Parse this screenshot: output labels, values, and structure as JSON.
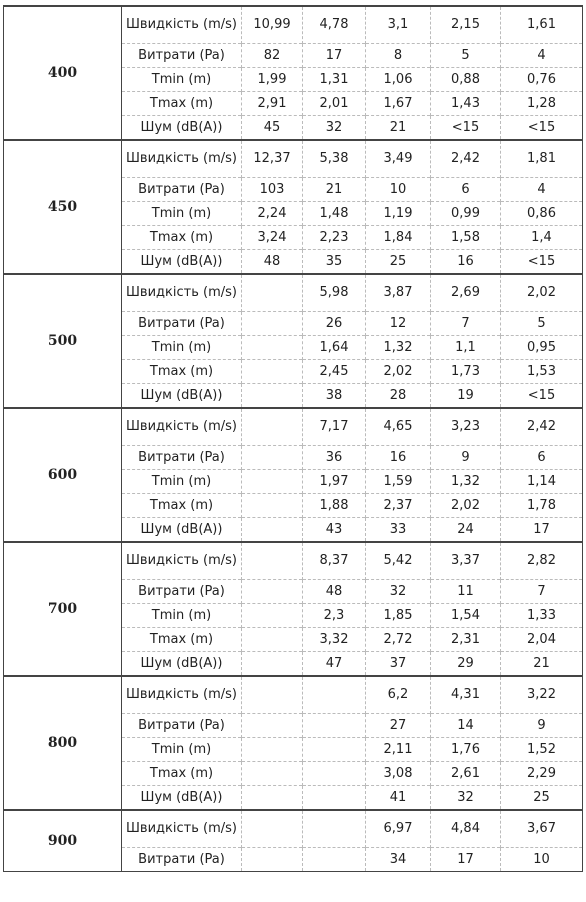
{
  "table": {
    "groups": [
      {
        "label": "400",
        "rows": [
          {
            "label": "Швидкість (m/s)",
            "values": [
              "10,99",
              "4,78",
              "3,1",
              "2,15",
              "1,61"
            ]
          },
          {
            "label": "Витрати (Pa)",
            "values": [
              "82",
              "17",
              "8",
              "5",
              "4"
            ]
          },
          {
            "label": "Tmin (m)",
            "values": [
              "1,99",
              "1,31",
              "1,06",
              "0,88",
              "0,76"
            ]
          },
          {
            "label": "Tmax (m)",
            "values": [
              "2,91",
              "2,01",
              "1,67",
              "1,43",
              "1,28"
            ]
          },
          {
            "label": "Шум (dB(A))",
            "values": [
              "45",
              "32",
              "21",
              "<15",
              "<15"
            ]
          }
        ]
      },
      {
        "label": "450",
        "rows": [
          {
            "label": "Швидкість (m/s)",
            "values": [
              "12,37",
              "5,38",
              "3,49",
              "2,42",
              "1,81"
            ]
          },
          {
            "label": "Витрати (Pa)",
            "values": [
              "103",
              "21",
              "10",
              "6",
              "4"
            ]
          },
          {
            "label": "Tmin (m)",
            "values": [
              "2,24",
              "1,48",
              "1,19",
              "0,99",
              "0,86"
            ]
          },
          {
            "label": "Tmax (m)",
            "values": [
              "3,24",
              "2,23",
              "1,84",
              "1,58",
              "1,4"
            ]
          },
          {
            "label": "Шум (dB(A))",
            "values": [
              "48",
              "35",
              "25",
              "16",
              "<15"
            ]
          }
        ]
      },
      {
        "label": "500",
        "rows": [
          {
            "label": "Швидкість (m/s)",
            "values": [
              null,
              "5,98",
              "3,87",
              "2,69",
              "2,02"
            ]
          },
          {
            "label": "Витрати (Pa)",
            "values": [
              null,
              "26",
              "12",
              "7",
              "5"
            ]
          },
          {
            "label": "Tmin (m)",
            "values": [
              null,
              "1,64",
              "1,32",
              "1,1",
              "0,95"
            ]
          },
          {
            "label": "Tmax (m)",
            "values": [
              null,
              "2,45",
              "2,02",
              "1,73",
              "1,53"
            ]
          },
          {
            "label": "Шум (dB(A))",
            "values": [
              null,
              "38",
              "28",
              "19",
              "<15"
            ]
          }
        ]
      },
      {
        "label": "600",
        "rows": [
          {
            "label": "Швидкість (m/s)",
            "values": [
              null,
              "7,17",
              "4,65",
              "3,23",
              "2,42"
            ]
          },
          {
            "label": "Витрати (Pa)",
            "values": [
              null,
              "36",
              "16",
              "9",
              "6"
            ]
          },
          {
            "label": "Tmin (m)",
            "values": [
              null,
              "1,97",
              "1,59",
              "1,32",
              "1,14"
            ]
          },
          {
            "label": "Tmax (m)",
            "values": [
              null,
              "1,88",
              "2,37",
              "2,02",
              "1,78"
            ]
          },
          {
            "label": "Шум (dB(A))",
            "values": [
              null,
              "43",
              "33",
              "24",
              "17"
            ]
          }
        ]
      },
      {
        "label": "700",
        "rows": [
          {
            "label": "Швидкість (m/s)",
            "values": [
              null,
              "8,37",
              "5,42",
              "3,37",
              "2,82"
            ]
          },
          {
            "label": "Витрати (Pa)",
            "values": [
              null,
              "48",
              "32",
              "11",
              "7"
            ]
          },
          {
            "label": "Tmin (m)",
            "values": [
              null,
              "2,3",
              "1,85",
              "1,54",
              "1,33"
            ]
          },
          {
            "label": "Tmax (m)",
            "values": [
              null,
              "3,32",
              "2,72",
              "2,31",
              "2,04"
            ]
          },
          {
            "label": "Шум (dB(A))",
            "values": [
              null,
              "47",
              "37",
              "29",
              "21"
            ]
          }
        ]
      },
      {
        "label": "800",
        "rows": [
          {
            "label": "Швидкість (m/s)",
            "values": [
              null,
              null,
              "6,2",
              "4,31",
              "3,22"
            ]
          },
          {
            "label": "Витрати (Pa)",
            "values": [
              null,
              null,
              "27",
              "14",
              "9"
            ]
          },
          {
            "label": "Tmin (m)",
            "values": [
              null,
              null,
              "2,11",
              "1,76",
              "1,52"
            ]
          },
          {
            "label": "Tmax (m)",
            "values": [
              null,
              null,
              "3,08",
              "2,61",
              "2,29"
            ]
          },
          {
            "label": "Шум (dB(A))",
            "values": [
              null,
              null,
              "41",
              "32",
              "25"
            ]
          }
        ]
      },
      {
        "label": "900",
        "rows": [
          {
            "label": "Швидкість (m/s)",
            "values": [
              null,
              null,
              "6,97",
              "4,84",
              "3,67"
            ]
          },
          {
            "label": "Витрати (Pa)",
            "values": [
              null,
              null,
              "34",
              "17",
              "10"
            ]
          }
        ]
      }
    ]
  }
}
